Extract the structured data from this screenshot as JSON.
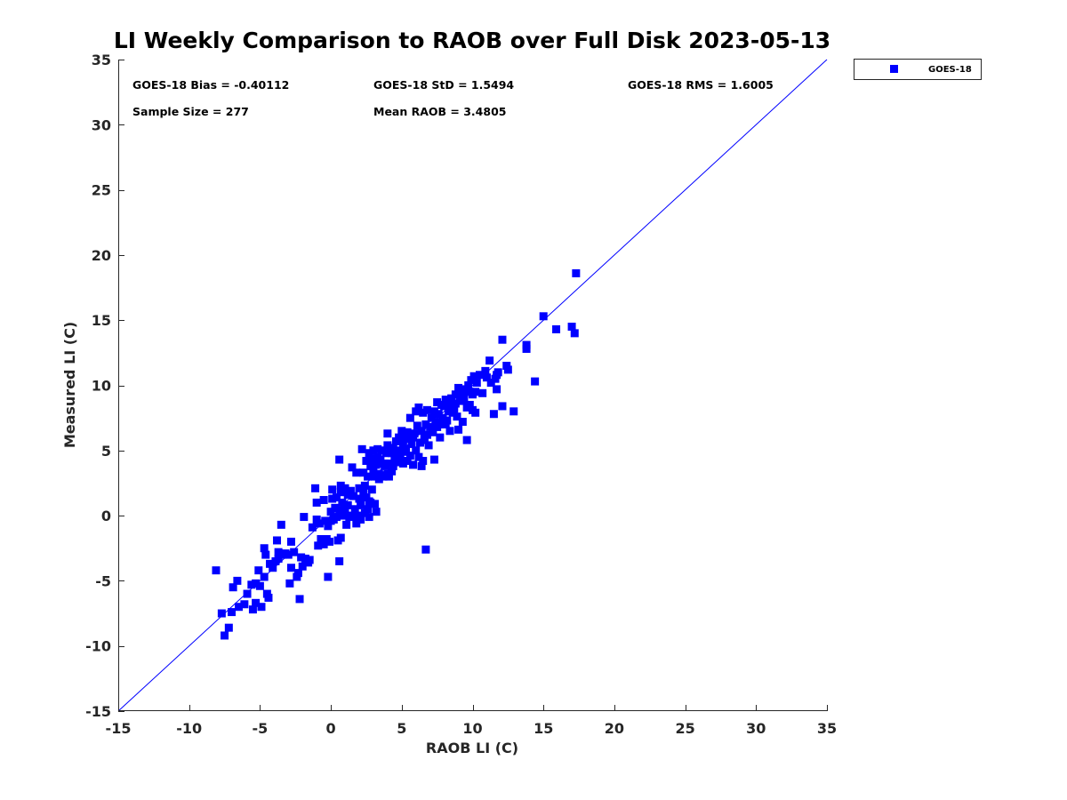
{
  "chart_data": {
    "type": "scatter",
    "title": "LI Weekly Comparison to RAOB over Full Disk 2023-05-13",
    "xlabel": "RAOB LI (C)",
    "ylabel": "Measured LI (C)",
    "xlim": [
      -15,
      35
    ],
    "ylim": [
      -15,
      35
    ],
    "xticks": [
      "-15",
      "-10",
      "-5",
      "0",
      "5",
      "10",
      "15",
      "20",
      "25",
      "30",
      "35"
    ],
    "yticks": [
      "-15",
      "-10",
      "-5",
      "0",
      "5",
      "10",
      "15",
      "20",
      "25",
      "30",
      "35"
    ],
    "grid": false,
    "reference_line": {
      "type": "one-to-one",
      "from": [
        -15,
        -15
      ],
      "to": [
        35,
        35
      ],
      "color": "#0000ff"
    },
    "stats": {
      "bias": "GOES-18 Bias = -0.40112",
      "std": "GOES-18 StD = 1.5494",
      "rms": "GOES-18 RMS = 1.6005",
      "sample_size": "Sample Size = 277",
      "mean_raob": "Mean RAOB = 3.4805"
    },
    "legend": {
      "position": "outside-top-right",
      "entries": [
        "GOES-18"
      ]
    },
    "series": [
      {
        "name": "GOES-18",
        "color": "#0000ff",
        "marker": "square",
        "points": [
          [
            -8.1,
            -4.2
          ],
          [
            -7.7,
            -7.5
          ],
          [
            -7.5,
            -9.2
          ],
          [
            -7.2,
            -8.6
          ],
          [
            -7.0,
            -7.4
          ],
          [
            -6.9,
            -5.5
          ],
          [
            -6.6,
            -5.0
          ],
          [
            -6.5,
            -7.0
          ],
          [
            -6.1,
            -6.8
          ],
          [
            -5.9,
            -6.0
          ],
          [
            -5.6,
            -5.3
          ],
          [
            -5.5,
            -7.2
          ],
          [
            -5.3,
            -5.2
          ],
          [
            -5.3,
            -6.7
          ],
          [
            -5.1,
            -4.2
          ],
          [
            -5.0,
            -5.4
          ],
          [
            -4.9,
            -7.0
          ],
          [
            -4.7,
            -4.7
          ],
          [
            -4.7,
            -2.5
          ],
          [
            -4.6,
            -3.0
          ],
          [
            -4.5,
            -6.0
          ],
          [
            -4.4,
            -6.3
          ],
          [
            -4.3,
            -3.7
          ],
          [
            -4.1,
            -4.0
          ],
          [
            -3.9,
            -3.5
          ],
          [
            -3.8,
            -1.9
          ],
          [
            -3.7,
            -3.3
          ],
          [
            -3.7,
            -2.8
          ],
          [
            -3.5,
            -0.7
          ],
          [
            -3.4,
            -3.0
          ],
          [
            -3.2,
            -2.9
          ],
          [
            -3.0,
            -3.0
          ],
          [
            -2.9,
            -5.2
          ],
          [
            -2.8,
            -2.0
          ],
          [
            -2.8,
            -4.0
          ],
          [
            -2.6,
            -2.8
          ],
          [
            -2.4,
            -4.7
          ],
          [
            -2.3,
            -4.4
          ],
          [
            -2.2,
            -6.4
          ],
          [
            -2.1,
            -3.2
          ],
          [
            -2.0,
            -3.9
          ],
          [
            -1.9,
            -0.1
          ],
          [
            -1.8,
            -3.3
          ],
          [
            -1.6,
            -3.6
          ],
          [
            -1.5,
            -3.4
          ],
          [
            -1.3,
            -0.9
          ],
          [
            -1.1,
            2.1
          ],
          [
            -1.0,
            -0.3
          ],
          [
            -1.0,
            1.0
          ],
          [
            -0.9,
            -2.3
          ],
          [
            -0.8,
            -0.6
          ],
          [
            -0.7,
            -1.8
          ],
          [
            -0.6,
            -2.0
          ],
          [
            -0.5,
            1.2
          ],
          [
            -0.5,
            -2.2
          ],
          [
            -0.4,
            -0.4
          ],
          [
            -0.3,
            -1.8
          ],
          [
            -0.2,
            -0.8
          ],
          [
            -0.2,
            -4.7
          ],
          [
            -0.1,
            -2.0
          ],
          [
            0.0,
            -0.4
          ],
          [
            0.0,
            0.3
          ],
          [
            0.1,
            2.0
          ],
          [
            0.1,
            1.3
          ],
          [
            0.2,
            -0.3
          ],
          [
            0.3,
            0.6
          ],
          [
            0.4,
            1.4
          ],
          [
            0.4,
            -0.1
          ],
          [
            0.5,
            -1.9
          ],
          [
            0.6,
            -3.5
          ],
          [
            0.6,
            4.3
          ],
          [
            0.6,
            0.4
          ],
          [
            0.7,
            1.8
          ],
          [
            0.7,
            -1.7
          ],
          [
            0.7,
            2.3
          ],
          [
            0.8,
            1.0
          ],
          [
            0.9,
            0.0
          ],
          [
            1.0,
            2.1
          ],
          [
            1.0,
            0.5
          ],
          [
            1.1,
            -0.7
          ],
          [
            1.2,
            1.6
          ],
          [
            1.2,
            0.8
          ],
          [
            1.3,
            -0.1
          ],
          [
            1.4,
            1.9
          ],
          [
            1.5,
            0.0
          ],
          [
            1.5,
            3.7
          ],
          [
            1.6,
            1.5
          ],
          [
            1.7,
            0.5
          ],
          [
            1.8,
            -0.6
          ],
          [
            1.8,
            3.3
          ],
          [
            1.9,
            0.0
          ],
          [
            2.0,
            1.3
          ],
          [
            2.0,
            2.1
          ],
          [
            2.1,
            0.8
          ],
          [
            2.1,
            -0.3
          ],
          [
            2.2,
            5.1
          ],
          [
            2.3,
            1.8
          ],
          [
            2.3,
            3.3
          ],
          [
            2.4,
            2.3
          ],
          [
            2.4,
            0.2
          ],
          [
            2.5,
            1.4
          ],
          [
            2.5,
            4.2
          ],
          [
            2.6,
            3.0
          ],
          [
            2.6,
            0.5
          ],
          [
            2.7,
            -0.1
          ],
          [
            2.7,
            4.8
          ],
          [
            2.7,
            1.1
          ],
          [
            2.8,
            3.8
          ],
          [
            2.8,
            1.0
          ],
          [
            2.9,
            4.4
          ],
          [
            2.9,
            2.0
          ],
          [
            3.0,
            5.0
          ],
          [
            3.0,
            3.5
          ],
          [
            3.1,
            3.0
          ],
          [
            3.1,
            0.9
          ],
          [
            3.2,
            3.9
          ],
          [
            3.2,
            0.3
          ],
          [
            3.3,
            4.5
          ],
          [
            3.3,
            5.1
          ],
          [
            3.4,
            3.2
          ],
          [
            3.4,
            2.8
          ],
          [
            3.5,
            4.0
          ],
          [
            3.5,
            4.3
          ],
          [
            3.6,
            3.1
          ],
          [
            3.6,
            5.0
          ],
          [
            3.7,
            3.0
          ],
          [
            3.8,
            4.0
          ],
          [
            3.8,
            3.8
          ],
          [
            3.9,
            4.8
          ],
          [
            4.0,
            3.2
          ],
          [
            4.0,
            5.4
          ],
          [
            4.0,
            6.3
          ],
          [
            4.1,
            3.0
          ],
          [
            4.2,
            4.0
          ],
          [
            4.2,
            5.0
          ],
          [
            4.3,
            4.8
          ],
          [
            4.3,
            3.4
          ],
          [
            4.4,
            5.2
          ],
          [
            4.4,
            3.8
          ],
          [
            4.5,
            4.3
          ],
          [
            4.6,
            4.5
          ],
          [
            4.6,
            5.7
          ],
          [
            4.7,
            5.0
          ],
          [
            4.8,
            4.1
          ],
          [
            4.8,
            6.0
          ],
          [
            4.9,
            4.6
          ],
          [
            5.0,
            5.8
          ],
          [
            5.0,
            6.5
          ],
          [
            5.1,
            4.0
          ],
          [
            5.1,
            5.4
          ],
          [
            5.2,
            6.2
          ],
          [
            5.2,
            4.9
          ],
          [
            5.3,
            5.1
          ],
          [
            5.4,
            6.4
          ],
          [
            5.4,
            4.2
          ],
          [
            5.5,
            5.9
          ],
          [
            5.6,
            7.5
          ],
          [
            5.6,
            4.6
          ],
          [
            5.7,
            5.5
          ],
          [
            5.8,
            6.0
          ],
          [
            5.8,
            3.9
          ],
          [
            5.9,
            6.3
          ],
          [
            6.0,
            8.0
          ],
          [
            6.0,
            5.0
          ],
          [
            6.1,
            6.9
          ],
          [
            6.2,
            4.5
          ],
          [
            6.2,
            8.3
          ],
          [
            6.3,
            5.6
          ],
          [
            6.4,
            3.8
          ],
          [
            6.4,
            6.5
          ],
          [
            6.5,
            7.9
          ],
          [
            6.5,
            4.2
          ],
          [
            6.6,
            6.0
          ],
          [
            6.6,
            5.8
          ],
          [
            6.7,
            7.0
          ],
          [
            6.7,
            -2.6
          ],
          [
            6.8,
            6.2
          ],
          [
            6.8,
            8.1
          ],
          [
            6.9,
            5.4
          ],
          [
            7.0,
            6.8
          ],
          [
            7.1,
            7.5
          ],
          [
            7.2,
            6.4
          ],
          [
            7.3,
            8.0
          ],
          [
            7.3,
            4.3
          ],
          [
            7.4,
            7.2
          ],
          [
            7.5,
            6.8
          ],
          [
            7.5,
            8.7
          ],
          [
            7.6,
            7.8
          ],
          [
            7.7,
            6.0
          ],
          [
            7.8,
            8.5
          ],
          [
            7.8,
            7.0
          ],
          [
            7.9,
            7.5
          ],
          [
            8.0,
            8.4
          ],
          [
            8.1,
            7.0
          ],
          [
            8.1,
            8.9
          ],
          [
            8.2,
            7.3
          ],
          [
            8.3,
            8.0
          ],
          [
            8.4,
            6.5
          ],
          [
            8.5,
            8.5
          ],
          [
            8.5,
            9.0
          ],
          [
            8.6,
            7.9
          ],
          [
            8.7,
            8.2
          ],
          [
            8.8,
            8.6
          ],
          [
            8.8,
            9.3
          ],
          [
            8.9,
            7.6
          ],
          [
            9.0,
            6.6
          ],
          [
            9.0,
            9.8
          ],
          [
            9.1,
            8.8
          ],
          [
            9.1,
            9.2
          ],
          [
            9.2,
            9.6
          ],
          [
            9.3,
            7.2
          ],
          [
            9.4,
            9.4
          ],
          [
            9.4,
            8.9
          ],
          [
            9.5,
            9.7
          ],
          [
            9.6,
            5.8
          ],
          [
            9.6,
            8.3
          ],
          [
            9.7,
            10.0
          ],
          [
            9.8,
            9.5
          ],
          [
            9.8,
            8.5
          ],
          [
            9.9,
            10.4
          ],
          [
            10.0,
            9.3
          ],
          [
            10.0,
            8.1
          ],
          [
            10.1,
            10.7
          ],
          [
            10.2,
            7.9
          ],
          [
            10.2,
            9.5
          ],
          [
            10.3,
            10.2
          ],
          [
            10.5,
            10.8
          ],
          [
            10.7,
            9.4
          ],
          [
            10.9,
            11.1
          ],
          [
            11.0,
            10.6
          ],
          [
            11.2,
            11.9
          ],
          [
            11.3,
            10.2
          ],
          [
            11.5,
            7.8
          ],
          [
            11.6,
            10.5
          ],
          [
            11.7,
            10.8
          ],
          [
            11.7,
            9.7
          ],
          [
            11.8,
            11.0
          ],
          [
            12.1,
            8.4
          ],
          [
            12.1,
            13.5
          ],
          [
            12.4,
            11.5
          ],
          [
            12.5,
            11.2
          ],
          [
            12.9,
            8.0
          ],
          [
            13.8,
            12.8
          ],
          [
            13.8,
            13.1
          ],
          [
            14.4,
            10.3
          ],
          [
            15.0,
            15.3
          ],
          [
            15.9,
            14.3
          ],
          [
            17.0,
            14.5
          ],
          [
            17.2,
            14.0
          ],
          [
            17.3,
            18.6
          ]
        ]
      }
    ]
  }
}
